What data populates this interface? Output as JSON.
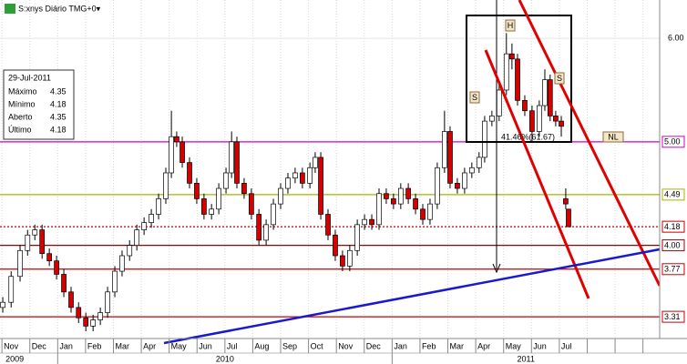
{
  "chart_data": {
    "type": "candlestick",
    "title": "S:xnys Diário TMG+0▾",
    "info": {
      "date": "29-Jul-2011",
      "rows": [
        [
          "Máximo",
          4.35
        ],
        [
          "Mínimo",
          4.18
        ],
        [
          "Aberto",
          4.35
        ],
        [
          "Último",
          4.18
        ]
      ]
    },
    "annotations": [
      "S",
      "H",
      "S",
      "NL",
      "41.46%(61.67)"
    ],
    "month_labels": [
      "Nov",
      "Dec",
      "Jan",
      "Feb",
      "Mar",
      "Apr",
      "May",
      "Jun",
      "Jul",
      "Aug",
      "Sep",
      "Oct",
      "Nov",
      "Dec",
      "Jan",
      "Feb",
      "Mar",
      "Apr",
      "May",
      "Jun",
      "Jul",
      null,
      null,
      null
    ],
    "year_labels": [
      "2009",
      "2010",
      "2011"
    ],
    "xlim": [
      -0.07,
      23.6
    ],
    "ylim": [
      3.1,
      6.37
    ],
    "yticks": [
      {
        "value": 6,
        "label": "6.00"
      }
    ],
    "levels": [
      {
        "value": 5,
        "label": "5.00",
        "color": "#cc00cc"
      },
      {
        "value": 4.49,
        "label": "4.49",
        "color": "#a8b400"
      },
      {
        "value": 4.18,
        "label": "4.18",
        "color": "#c00000",
        "dotted": true
      },
      {
        "value": 4,
        "label": "4.00",
        "color": "#a00000"
      },
      {
        "value": 3.77,
        "label": "3.77",
        "color": "#cc0000"
      },
      {
        "value": 3.31,
        "label": "3.31",
        "color": "#cc0000"
      }
    ],
    "up_color": "#ffffff",
    "down_color": "#d40000",
    "x": [
      0.03,
      0.33,
      0.65,
      0.92,
      1.18,
      1.44,
      1.7,
      1.96,
      2.22,
      2.48,
      2.75,
      3.01,
      3.27,
      3.53,
      3.79,
      4.05,
      4.31,
      4.58,
      4.84,
      5.1,
      5.36,
      5.62,
      5.88,
      6.08,
      6.27,
      6.47,
      6.73,
      6.99,
      7.25,
      7.52,
      7.78,
      8.04,
      8.24,
      8.43,
      8.69,
      8.95,
      9.22,
      9.48,
      9.74,
      10.0,
      10.26,
      10.52,
      10.78,
      11.05,
      11.24,
      11.44,
      11.7,
      11.96,
      12.22,
      12.48,
      12.75,
      13.01,
      13.27,
      13.53,
      13.79,
      14.05,
      14.31,
      14.58,
      14.84,
      15.1,
      15.36,
      15.62,
      15.88,
      16.08,
      16.34,
      16.6,
      16.86,
      17.12,
      17.32,
      17.58,
      17.84,
      18.1,
      18.3,
      18.5,
      18.76,
      19.02,
      19.28,
      19.48,
      19.67,
      19.87,
      20.07,
      20.23,
      20.33
    ],
    "open": [
      3.4,
      3.45,
      3.7,
      3.95,
      4.1,
      4.15,
      3.92,
      3.85,
      3.72,
      3.55,
      3.4,
      3.3,
      3.22,
      3.28,
      3.35,
      3.55,
      3.75,
      3.9,
      4.0,
      4.15,
      4.22,
      4.3,
      4.45,
      4.7,
      5.05,
      5.0,
      4.8,
      4.6,
      4.45,
      4.3,
      4.35,
      4.55,
      4.7,
      5.0,
      4.6,
      4.5,
      4.3,
      4.05,
      4.2,
      4.4,
      4.55,
      4.65,
      4.7,
      4.6,
      4.75,
      4.85,
      4.3,
      4.1,
      3.9,
      3.8,
      3.95,
      4.2,
      4.25,
      4.2,
      4.5,
      4.45,
      4.4,
      4.55,
      4.45,
      4.35,
      4.25,
      4.4,
      4.75,
      5.1,
      4.6,
      4.55,
      4.7,
      4.75,
      4.85,
      5.2,
      5.25,
      5.5,
      5.85,
      5.8,
      5.4,
      5.3,
      5.1,
      5.35,
      5.6,
      5.25,
      5.2,
      4.45,
      4.35
    ],
    "high": [
      3.5,
      3.75,
      4.0,
      4.15,
      4.2,
      4.2,
      3.97,
      3.9,
      3.77,
      3.6,
      3.45,
      3.35,
      3.33,
      3.4,
      3.6,
      3.8,
      3.95,
      4.05,
      4.2,
      4.27,
      4.35,
      4.5,
      4.75,
      5.3,
      5.1,
      5.05,
      4.85,
      4.65,
      4.5,
      4.4,
      4.6,
      4.75,
      5.1,
      5.05,
      4.65,
      4.55,
      4.35,
      4.25,
      4.45,
      4.6,
      4.7,
      4.75,
      4.75,
      4.8,
      4.9,
      4.9,
      4.35,
      4.15,
      3.95,
      4.0,
      4.25,
      4.3,
      4.3,
      4.55,
      4.55,
      4.5,
      4.6,
      4.6,
      4.5,
      4.4,
      4.45,
      4.8,
      5.3,
      5.15,
      4.65,
      4.75,
      4.8,
      4.9,
      5.25,
      5.3,
      5.55,
      6.05,
      5.95,
      5.85,
      5.45,
      5.35,
      5.4,
      5.7,
      5.65,
      5.3,
      5.25,
      4.55,
      4.35
    ],
    "low": [
      3.35,
      3.4,
      3.65,
      3.9,
      4.05,
      3.87,
      3.8,
      3.67,
      3.5,
      3.35,
      3.25,
      3.17,
      3.17,
      3.23,
      3.3,
      3.5,
      3.7,
      3.85,
      3.95,
      4.1,
      4.17,
      4.25,
      4.4,
      4.65,
      4.95,
      4.75,
      4.55,
      4.4,
      4.25,
      4.25,
      4.3,
      4.5,
      4.65,
      4.55,
      4.45,
      4.25,
      4.0,
      4.0,
      4.15,
      4.35,
      4.5,
      4.6,
      4.55,
      4.55,
      4.7,
      4.25,
      4.05,
      3.85,
      3.75,
      3.75,
      3.9,
      4.15,
      4.15,
      4.15,
      4.4,
      4.35,
      4.35,
      4.4,
      4.3,
      4.2,
      4.2,
      4.35,
      4.7,
      4.55,
      4.5,
      4.5,
      4.65,
      4.7,
      4.8,
      5.15,
      5.2,
      5.45,
      5.7,
      5.35,
      5.25,
      5.0,
      5.05,
      5.3,
      5.2,
      5.15,
      5.05,
      4.35,
      4.18
    ],
    "close": [
      3.45,
      3.7,
      3.95,
      4.1,
      4.15,
      3.92,
      3.85,
      3.72,
      3.55,
      3.4,
      3.3,
      3.22,
      3.28,
      3.35,
      3.55,
      3.75,
      3.9,
      4.0,
      4.15,
      4.22,
      4.3,
      4.45,
      4.7,
      5.05,
      5.0,
      4.8,
      4.6,
      4.45,
      4.3,
      4.35,
      4.55,
      4.7,
      5.0,
      4.6,
      4.5,
      4.3,
      4.05,
      4.2,
      4.4,
      4.55,
      4.65,
      4.7,
      4.6,
      4.75,
      4.85,
      4.3,
      4.1,
      3.9,
      3.8,
      3.95,
      4.2,
      4.25,
      4.2,
      4.5,
      4.45,
      4.4,
      4.55,
      4.45,
      4.35,
      4.25,
      4.4,
      4.75,
      5.1,
      4.6,
      4.55,
      4.7,
      4.75,
      4.85,
      5.2,
      5.25,
      5.5,
      5.85,
      5.8,
      5.4,
      5.3,
      5.1,
      5.35,
      5.6,
      5.25,
      5.2,
      5.15,
      4.4,
      4.18
    ]
  }
}
